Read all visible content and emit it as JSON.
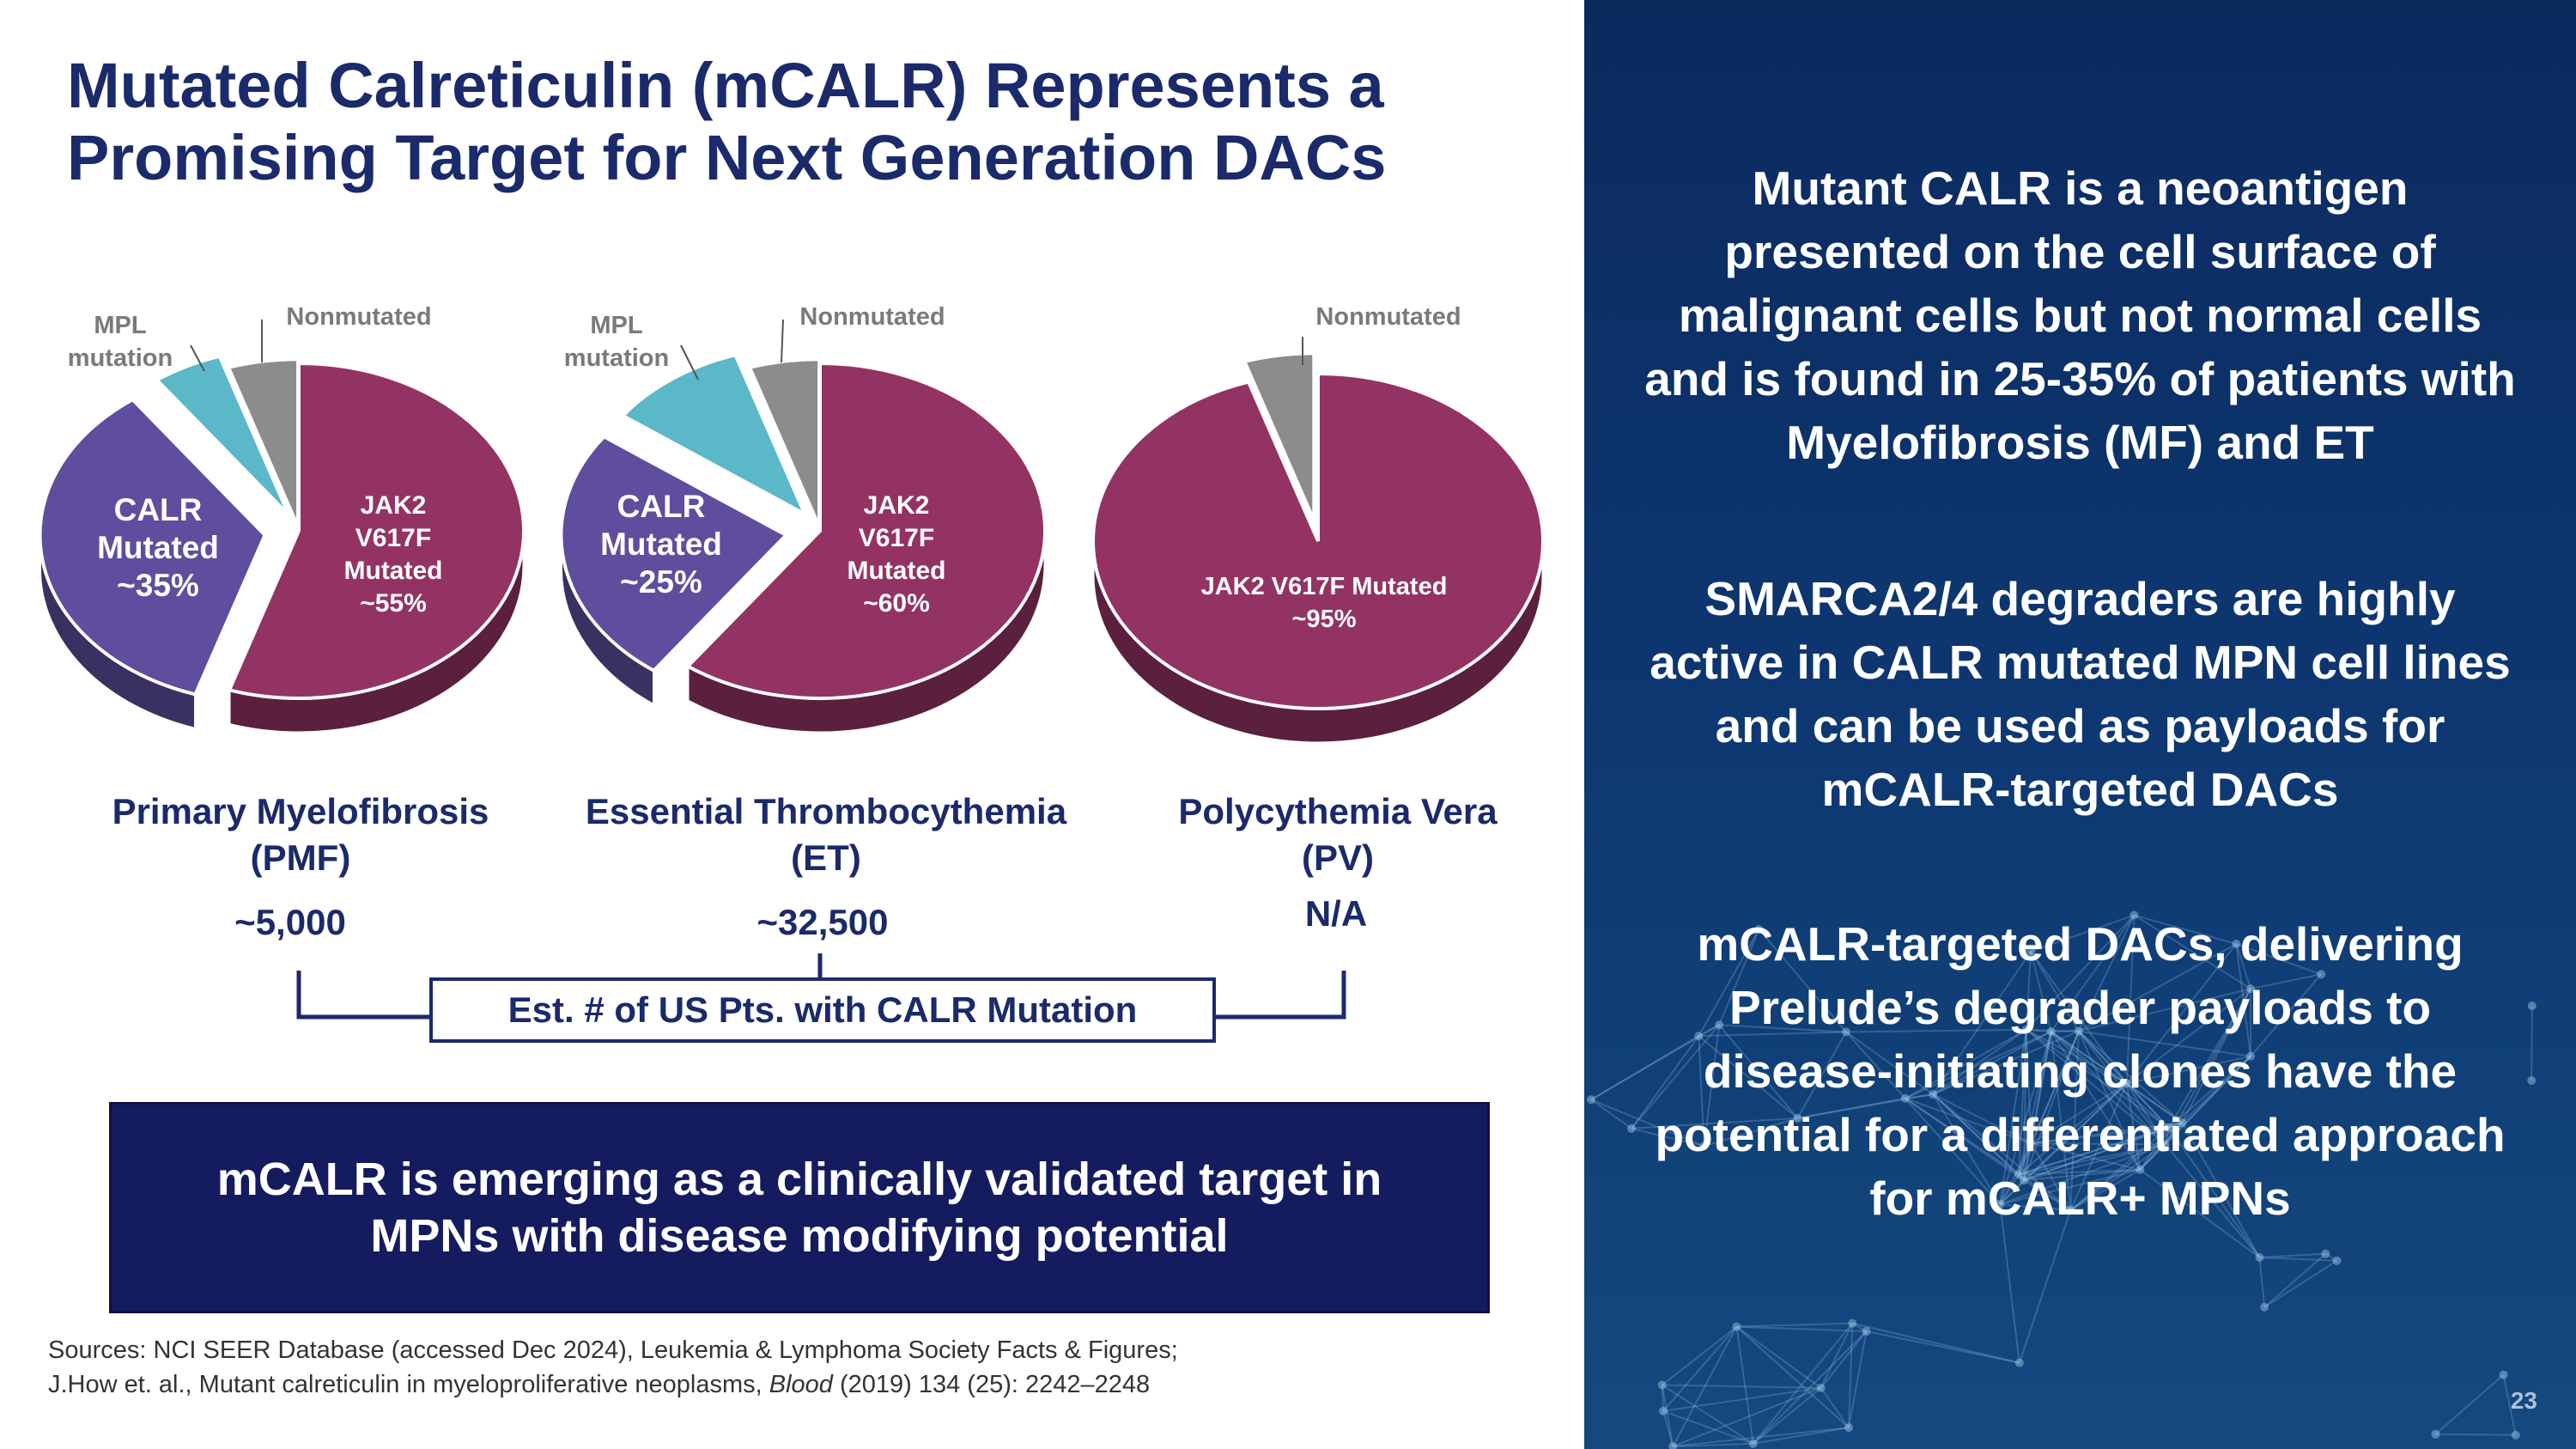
{
  "title": "Mutated Calreticulin (mCALR) Represents a Promising Target for Next Generation DACs",
  "colors": {
    "navy": "#1b2a6b",
    "jak2": "#933363",
    "calr": "#5f4d9e",
    "mpl": "#5ab8c9",
    "nonmutated": "#8c8c8c"
  },
  "chart_data": [
    {
      "type": "pie",
      "title": "Primary Myelofibrosis (PMF)",
      "slices": [
        {
          "name": "JAK2 V617F Mutated ~55%",
          "value": 55
        },
        {
          "name": "CALR Mutated ~35%",
          "value": 35
        },
        {
          "name": "MPL mutation",
          "value": 5
        },
        {
          "name": "Nonmutated",
          "value": 5
        }
      ]
    },
    {
      "type": "pie",
      "title": "Essential Thrombocythemia (ET)",
      "slices": [
        {
          "name": "JAK2 V617F Mutated ~60%",
          "value": 60
        },
        {
          "name": "CALR Mutated ~25%",
          "value": 25
        },
        {
          "name": "MPL mutation",
          "value": 10
        },
        {
          "name": "Nonmutated",
          "value": 5
        }
      ]
    },
    {
      "type": "pie",
      "title": "Polycythemia Vera (PV)",
      "slices": [
        {
          "name": "JAK2 V617F Mutated ~95%",
          "value": 95
        },
        {
          "name": "Nonmutated",
          "value": 5
        }
      ]
    }
  ],
  "pies": [
    {
      "labels": {
        "jak2": [
          "JAK2",
          "V617F",
          "Mutated",
          "~55%"
        ],
        "calr": [
          "CALR",
          "Mutated",
          "~35%"
        ],
        "mpl": [
          "MPL",
          "mutation"
        ],
        "nonmutated": "Nonmutated"
      }
    },
    {
      "labels": {
        "jak2": [
          "JAK2",
          "V617F",
          "Mutated",
          "~60%"
        ],
        "calr": [
          "CALR",
          "Mutated",
          "~25%"
        ],
        "mpl": [
          "MPL",
          "mutation"
        ],
        "nonmutated": "Nonmutated"
      }
    },
    {
      "labels": {
        "jak2": [
          "JAK2 V617F Mutated",
          "~95%"
        ],
        "nonmutated": "Nonmutated"
      }
    }
  ],
  "diseases": [
    {
      "line1": "Primary Myelofibrosis",
      "line2": "(PMF)",
      "count": "~5,000"
    },
    {
      "line1": "Essential Thrombocythemia",
      "line2": "(ET)",
      "count": "~32,500"
    },
    {
      "line1": "Polycythemia Vera",
      "line2": "(PV)",
      "count": "N/A"
    }
  ],
  "est_label": "Est. # of US Pts. with CALR Mutation",
  "callout": "mCALR is emerging as a clinically validated target in MPNs with disease modifying potential",
  "sources": {
    "line1": "Sources: NCI SEER Database (accessed Dec 2024), Leukemia & Lymphoma Society Facts & Figures;",
    "line2_pre": "J.How et. al., Mutant calreticulin in myeloproliferative neoplasms, ",
    "line2_journal": "Blood",
    "line2_post": " (2019) 134 (25): 2242–2248"
  },
  "bullets": [
    "Mutant CALR is a neoantigen presented on the cell surface of malignant cells but not normal cells and is found in 25-35% of patients with Myelofibrosis (MF) and ET",
    "SMARCA2/4 degraders are highly active in CALR mutated MPN cell lines and can be used as payloads for mCALR-targeted DACs",
    "mCALR-targeted DACs, delivering Prelude’s degrader payloads to disease-initiating clones have the potential for a differentiated approach for mCALR+ MPNs"
  ],
  "page_number": "23"
}
